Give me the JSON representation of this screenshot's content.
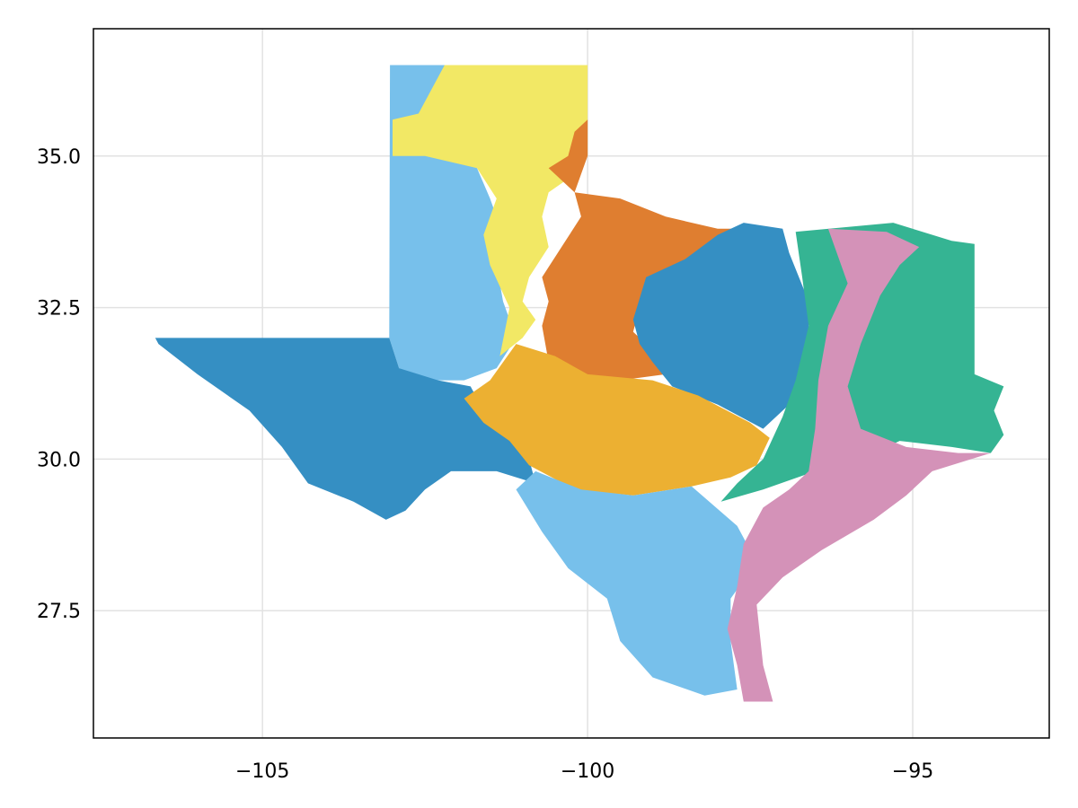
{
  "chart_data": {
    "type": "map",
    "title": "",
    "xlabel": "",
    "ylabel": "",
    "xlim": [
      -107.6,
      -92.9
    ],
    "ylim": [
      25.4,
      37.1
    ],
    "grid": true,
    "legend": "none",
    "x_ticks": [
      {
        "value": -105,
        "label": "−105"
      },
      {
        "value": -100,
        "label": "−100"
      },
      {
        "value": -95,
        "label": "−95"
      }
    ],
    "y_ticks": [
      {
        "value": 27.5,
        "label": "27.5"
      },
      {
        "value": 30.0,
        "label": "30.0"
      },
      {
        "value": 32.5,
        "label": "32.5"
      },
      {
        "value": 35.0,
        "label": "35.0"
      }
    ],
    "regions": [
      {
        "id": "panhandle-high-plains",
        "color": "#77c0eb",
        "coords": [
          [
            -103.04,
            36.5
          ],
          [
            -101.4,
            36.5
          ],
          [
            -101.0,
            36.1
          ],
          [
            -101.4,
            35.9
          ],
          [
            -101.6,
            35.5
          ],
          [
            -102.0,
            35.1
          ],
          [
            -101.7,
            34.8
          ],
          [
            -101.5,
            34.3
          ],
          [
            -101.3,
            33.7
          ],
          [
            -101.4,
            33.2
          ],
          [
            -101.3,
            32.6
          ],
          [
            -101.1,
            32.0
          ],
          [
            -101.4,
            31.5
          ],
          [
            -101.9,
            31.3
          ],
          [
            -102.5,
            31.3
          ],
          [
            -102.9,
            31.5
          ],
          [
            -103.05,
            32.0
          ]
        ]
      },
      {
        "id": "panhandle-north-plains",
        "color": "#f2e865",
        "coords": [
          [
            -102.2,
            36.5
          ],
          [
            -100.0,
            36.5
          ],
          [
            -100.0,
            35.0
          ],
          [
            -100.2,
            34.7
          ],
          [
            -100.6,
            34.4
          ],
          [
            -100.7,
            34.0
          ],
          [
            -100.6,
            33.5
          ],
          [
            -100.9,
            33.0
          ],
          [
            -101.0,
            32.6
          ],
          [
            -100.8,
            32.3
          ],
          [
            -101.0,
            32.0
          ],
          [
            -101.35,
            31.7
          ],
          [
            -101.2,
            32.5
          ],
          [
            -101.5,
            33.2
          ],
          [
            -101.6,
            33.7
          ],
          [
            -101.4,
            34.3
          ],
          [
            -101.7,
            34.8
          ],
          [
            -102.5,
            35.0
          ],
          [
            -103.0,
            35.0
          ],
          [
            -103.0,
            35.6
          ],
          [
            -102.6,
            35.7
          ]
        ]
      },
      {
        "id": "rolling-plains-orange",
        "color": "#df7e30",
        "coords": [
          [
            -100.0,
            35.6
          ],
          [
            -100.0,
            35.0
          ],
          [
            -100.2,
            34.4
          ],
          [
            -99.5,
            34.3
          ],
          [
            -98.8,
            34.0
          ],
          [
            -98.0,
            33.8
          ],
          [
            -97.7,
            33.8
          ],
          [
            -98.0,
            33.2
          ],
          [
            -98.6,
            33.0
          ],
          [
            -99.2,
            32.5
          ],
          [
            -99.3,
            32.1
          ],
          [
            -99.0,
            31.8
          ],
          [
            -98.8,
            31.4
          ],
          [
            -99.5,
            31.3
          ],
          [
            -100.0,
            31.1
          ],
          [
            -100.5,
            31.3
          ],
          [
            -100.6,
            31.6
          ],
          [
            -100.7,
            32.2
          ],
          [
            -100.6,
            32.6
          ],
          [
            -100.7,
            33.0
          ],
          [
            -100.4,
            33.5
          ],
          [
            -100.1,
            34.0
          ],
          [
            -100.2,
            34.4
          ],
          [
            -100.6,
            34.8
          ],
          [
            -100.3,
            35.0
          ],
          [
            -100.2,
            35.4
          ]
        ]
      },
      {
        "id": "trans-pecos-and-north-central",
        "color": "#358fc3",
        "coords": [
          [
            -106.65,
            32.0
          ],
          [
            -103.05,
            32.0
          ],
          [
            -102.9,
            31.5
          ],
          [
            -102.3,
            31.3
          ],
          [
            -101.8,
            31.2
          ],
          [
            -101.6,
            30.8
          ],
          [
            -101.0,
            30.5
          ],
          [
            -100.9,
            30.0
          ],
          [
            -100.8,
            29.6
          ],
          [
            -101.4,
            29.8
          ],
          [
            -102.1,
            29.8
          ],
          [
            -102.5,
            29.5
          ],
          [
            -102.8,
            29.15
          ],
          [
            -103.1,
            29.0
          ],
          [
            -103.6,
            29.3
          ],
          [
            -104.3,
            29.6
          ],
          [
            -104.7,
            30.2
          ],
          [
            -105.2,
            30.8
          ],
          [
            -106.0,
            31.4
          ],
          [
            -106.6,
            31.9
          ]
        ]
      },
      {
        "id": "north-central-blue",
        "color": "#358fc3",
        "coords": [
          [
            -99.3,
            32.3
          ],
          [
            -99.1,
            33.0
          ],
          [
            -98.5,
            33.3
          ],
          [
            -98.0,
            33.7
          ],
          [
            -97.6,
            33.9
          ],
          [
            -97.0,
            33.8
          ],
          [
            -96.9,
            33.4
          ],
          [
            -96.6,
            32.6
          ],
          [
            -96.6,
            31.8
          ],
          [
            -96.8,
            31.0
          ],
          [
            -97.3,
            30.5
          ],
          [
            -98.0,
            30.9
          ],
          [
            -98.7,
            31.2
          ],
          [
            -99.0,
            31.6
          ],
          [
            -99.2,
            31.9
          ]
        ]
      },
      {
        "id": "edwards-plateau",
        "color": "#ecb032",
        "coords": [
          [
            -101.5,
            31.3
          ],
          [
            -101.1,
            31.9
          ],
          [
            -100.5,
            31.7
          ],
          [
            -100.0,
            31.4
          ],
          [
            -99.0,
            31.3
          ],
          [
            -98.3,
            31.05
          ],
          [
            -97.5,
            30.6
          ],
          [
            -97.2,
            30.35
          ],
          [
            -97.4,
            29.9
          ],
          [
            -97.8,
            29.7
          ],
          [
            -98.4,
            29.55
          ],
          [
            -99.3,
            29.4
          ],
          [
            -100.2,
            29.5
          ],
          [
            -100.9,
            29.9
          ],
          [
            -101.2,
            30.3
          ],
          [
            -101.6,
            30.6
          ],
          [
            -101.9,
            31.0
          ]
        ]
      },
      {
        "id": "south-texas-plains",
        "color": "#77c0eb",
        "coords": [
          [
            -100.8,
            29.8
          ],
          [
            -100.1,
            29.5
          ],
          [
            -99.3,
            29.4
          ],
          [
            -98.4,
            29.55
          ],
          [
            -97.7,
            28.9
          ],
          [
            -97.4,
            28.3
          ],
          [
            -97.8,
            27.7
          ],
          [
            -97.8,
            27.0
          ],
          [
            -97.7,
            26.2
          ],
          [
            -98.2,
            26.1
          ],
          [
            -99.0,
            26.4
          ],
          [
            -99.5,
            27.0
          ],
          [
            -99.7,
            27.7
          ],
          [
            -100.3,
            28.2
          ],
          [
            -100.7,
            28.8
          ],
          [
            -101.1,
            29.5
          ]
        ]
      },
      {
        "id": "piney-woods",
        "color": "#35b493",
        "coords": [
          [
            -96.8,
            33.75
          ],
          [
            -95.3,
            33.9
          ],
          [
            -94.4,
            33.6
          ],
          [
            -94.05,
            33.55
          ],
          [
            -94.05,
            31.4
          ],
          [
            -93.6,
            31.2
          ],
          [
            -93.75,
            30.8
          ],
          [
            -93.6,
            30.4
          ],
          [
            -93.8,
            30.1
          ],
          [
            -94.4,
            30.2
          ],
          [
            -95.2,
            30.3
          ],
          [
            -95.8,
            30.0
          ],
          [
            -96.5,
            29.8
          ],
          [
            -97.3,
            29.5
          ],
          [
            -97.95,
            29.3
          ],
          [
            -97.7,
            29.6
          ],
          [
            -97.3,
            30.0
          ],
          [
            -97.0,
            30.7
          ],
          [
            -96.8,
            31.3
          ],
          [
            -96.6,
            32.2
          ],
          [
            -96.7,
            33.0
          ]
        ]
      },
      {
        "id": "blackland-and-coastal-prairie",
        "color": "#d492b8",
        "coords": [
          [
            -96.3,
            33.8
          ],
          [
            -95.4,
            33.75
          ],
          [
            -94.9,
            33.5
          ],
          [
            -95.2,
            33.2
          ],
          [
            -95.5,
            32.7
          ],
          [
            -95.8,
            31.9
          ],
          [
            -96.0,
            31.2
          ],
          [
            -95.8,
            30.5
          ],
          [
            -95.1,
            30.2
          ],
          [
            -94.3,
            30.1
          ],
          [
            -93.8,
            30.1
          ],
          [
            -94.7,
            29.8
          ],
          [
            -95.1,
            29.4
          ],
          [
            -95.6,
            29.0
          ],
          [
            -96.4,
            28.5
          ],
          [
            -97.0,
            28.05
          ],
          [
            -97.4,
            27.6
          ],
          [
            -97.3,
            26.6
          ],
          [
            -97.15,
            26.0
          ],
          [
            -97.6,
            26.0
          ],
          [
            -97.7,
            26.6
          ],
          [
            -97.85,
            27.2
          ],
          [
            -97.7,
            27.9
          ],
          [
            -97.6,
            28.6
          ],
          [
            -97.3,
            29.2
          ],
          [
            -96.9,
            29.5
          ],
          [
            -96.6,
            29.8
          ],
          [
            -96.5,
            30.5
          ],
          [
            -96.45,
            31.3
          ],
          [
            -96.3,
            32.2
          ],
          [
            -96.0,
            32.9
          ]
        ]
      }
    ]
  }
}
